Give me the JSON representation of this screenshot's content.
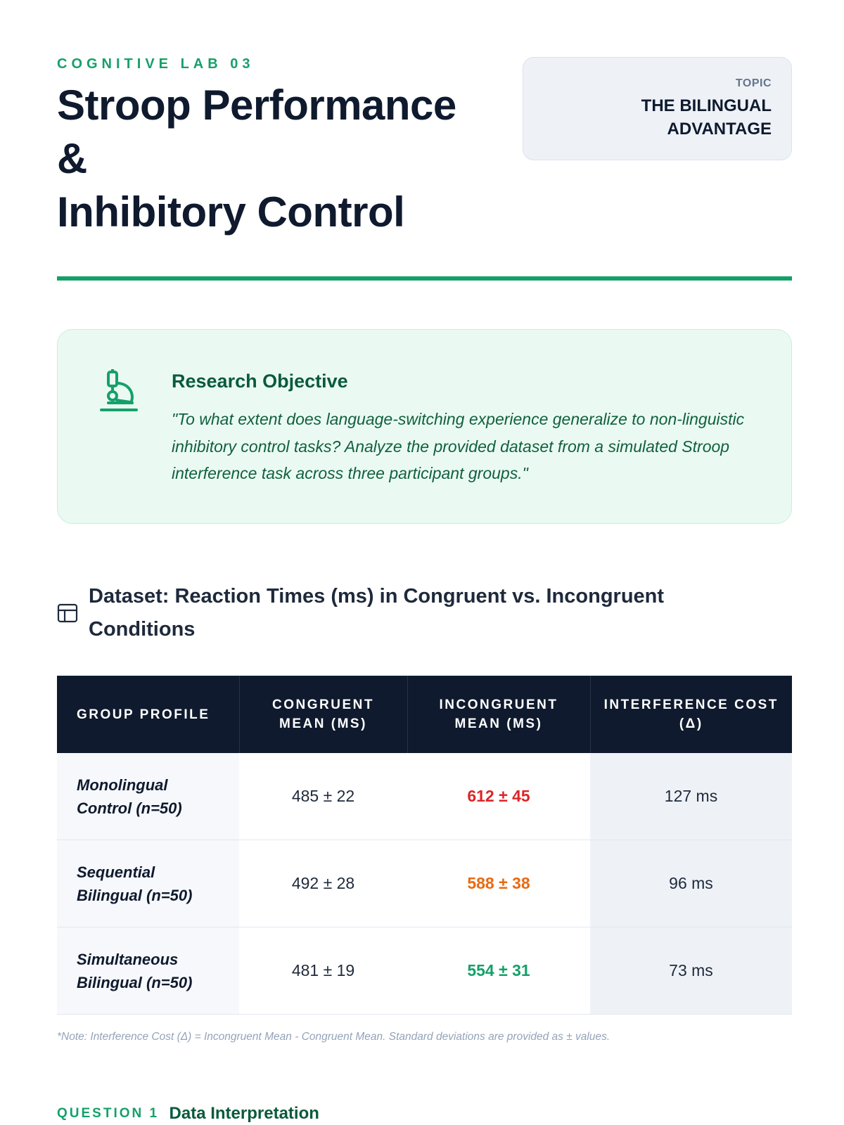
{
  "header": {
    "eyebrow": "COGNITIVE LAB 03",
    "title_line1": "Stroop Performance",
    "title_line2": "&",
    "title_line3": "Inhibitory Control",
    "topic_label": "TOPIC",
    "topic_value_line1": "THE BILINGUAL",
    "topic_value_line2": "ADVANTAGE"
  },
  "objective": {
    "icon": "microscope-icon",
    "title": "Research Objective",
    "text": "\"To what extent does language-switching experience generalize to non-linguistic inhibitory control tasks? Analyze the provided dataset from a simulated Stroop interference task across three participant groups.\""
  },
  "dataset": {
    "icon": "table-icon",
    "title": "Dataset: Reaction Times (ms) in Congruent vs. Incongruent Conditions",
    "columns": [
      "GROUP PROFILE",
      "CONGRUENT MEAN (MS)",
      "INCONGRUENT MEAN (MS)",
      "INTERFERENCE COST (Δ)"
    ],
    "rows": [
      {
        "group": "Monolingual Control (n=50)",
        "congruent": "485 ± 22",
        "incongruent": "612 ± 45",
        "cost": "127 ms"
      },
      {
        "group": "Sequential Bilingual (n=50)",
        "congruent": "492 ± 28",
        "incongruent": "588 ± 38",
        "cost": "96 ms"
      },
      {
        "group": "Simultaneous Bilingual (n=50)",
        "congruent": "481 ± 19",
        "incongruent": "554 ± 31",
        "cost": "73 ms"
      }
    ],
    "note": "*Note: Interference Cost (Δ) = Incongruent Mean - Congruent Mean. Standard deviations are provided as ± values."
  },
  "question": {
    "label": "QUESTION 1",
    "title": "Data Interpretation"
  },
  "colors": {
    "accent": "#15a06a",
    "navy": "#0f1a2e",
    "red": "#dc2626",
    "orange": "#ea6a10",
    "green": "#15a06a"
  }
}
